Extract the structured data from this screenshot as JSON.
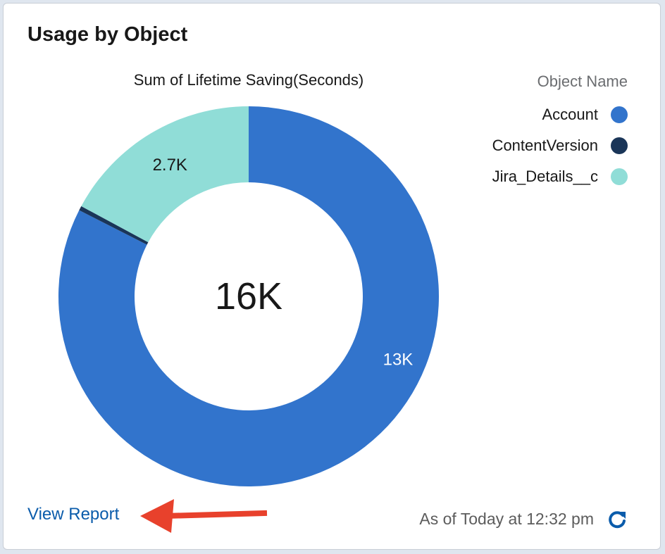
{
  "card": {
    "title": "Usage by Object",
    "view_report_label": "View Report",
    "timestamp": "As of Today at 12:32 pm",
    "refresh_icon": "refresh-icon",
    "annotation_arrow_color": "#e8412c"
  },
  "legend": {
    "title": "Object Name"
  },
  "chart_data": {
    "type": "pie",
    "variant": "donut",
    "title": "Sum of Lifetime Saving(Seconds)",
    "center_label": "16K",
    "total": 16000,
    "legend_title": "Object Name",
    "legend_placement": "right",
    "segments": [
      {
        "name": "Account",
        "value": 13000,
        "label": "13K",
        "color": "#3274cc",
        "label_color": "#ffffff"
      },
      {
        "name": "ContentVersion",
        "value": 60,
        "label": "",
        "color": "#1a3558",
        "label_color": "#181818"
      },
      {
        "name": "Jira_Details__c",
        "value": 2700,
        "label": "2.7K",
        "color": "#90ddd7",
        "label_color": "#181818"
      }
    ]
  }
}
